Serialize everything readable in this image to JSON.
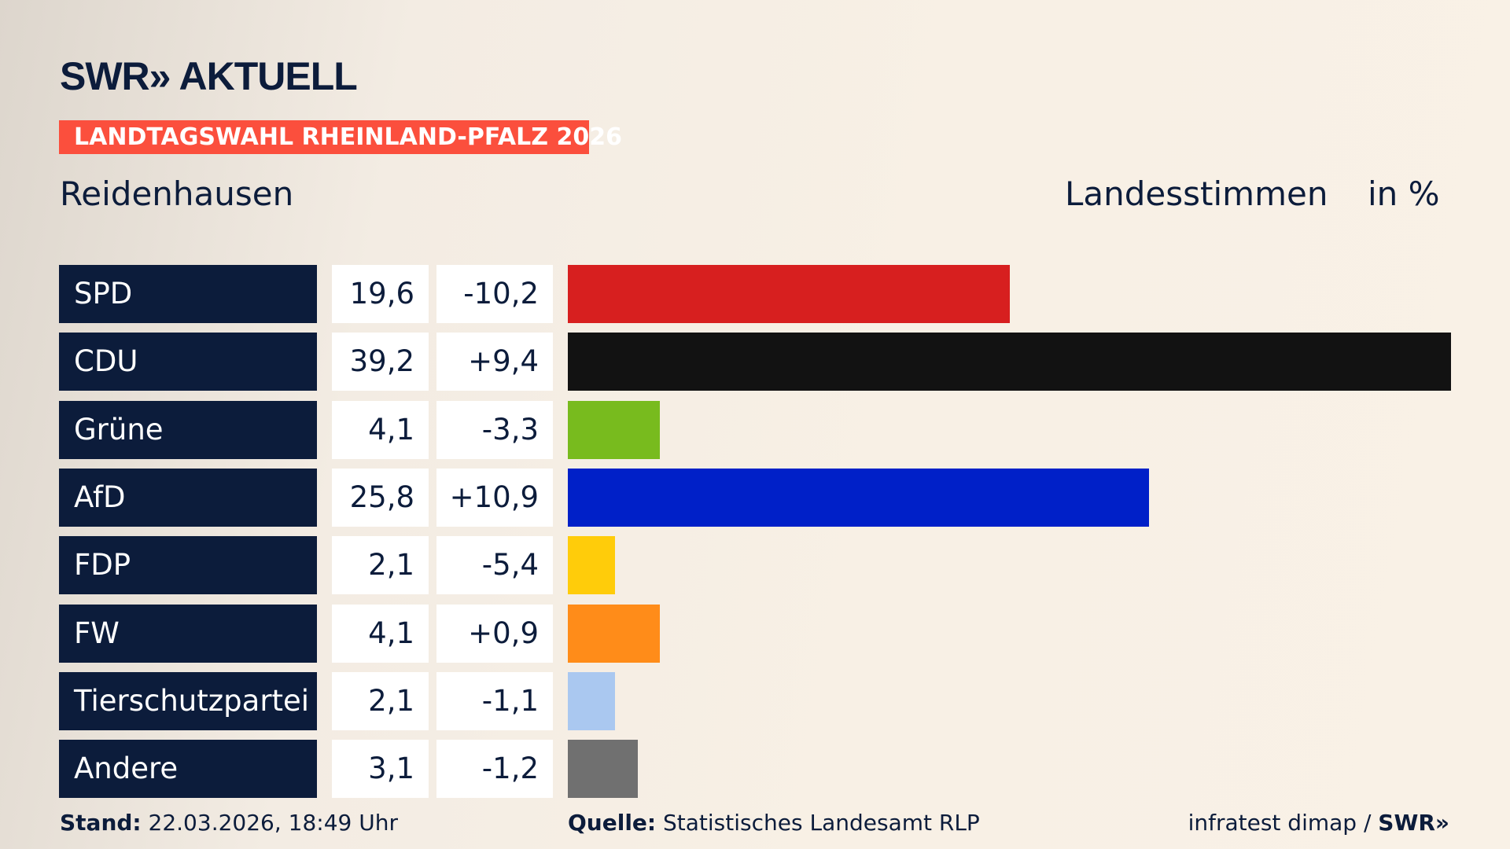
{
  "header": {
    "logo": "SWR» AKTUELL",
    "banner": "LANDTAGSWAHL RHEINLAND-PFALZ 2026",
    "place": "Reidenhausen",
    "measure": "Landesstimmen",
    "unit": "in %"
  },
  "chart_data": {
    "type": "bar",
    "orientation": "horizontal",
    "categories": [
      "SPD",
      "CDU",
      "Grüne",
      "AfD",
      "FDP",
      "FW",
      "Tierschutzpartei",
      "Andere"
    ],
    "values": [
      "19,6",
      "39,2",
      "4,1",
      "25,8",
      "2,1",
      "4,1",
      "2,1",
      "3,1"
    ],
    "numeric_values": [
      19.6,
      39.2,
      4.1,
      25.8,
      2.1,
      4.1,
      2.1,
      3.1
    ],
    "changes": [
      "-10,2",
      "+9,4",
      "-3,3",
      "+10,9",
      "-5,4",
      "+0,9",
      "-1,1",
      "-1,2"
    ],
    "colors": [
      "#d71f1f",
      "#121212",
      "#78bb1e",
      "#0020c8",
      "#ffcc0a",
      "#ff8c19",
      "#aac8f0",
      "#707070"
    ]
  },
  "footer": {
    "stand_label": "Stand:",
    "stand_value": "22.03.2026, 18:49 Uhr",
    "source_label": "Quelle:",
    "source_value": "Statistisches Landesamt RLP",
    "credit": "infratest dimap / ",
    "credit_logo": "SWR»"
  }
}
